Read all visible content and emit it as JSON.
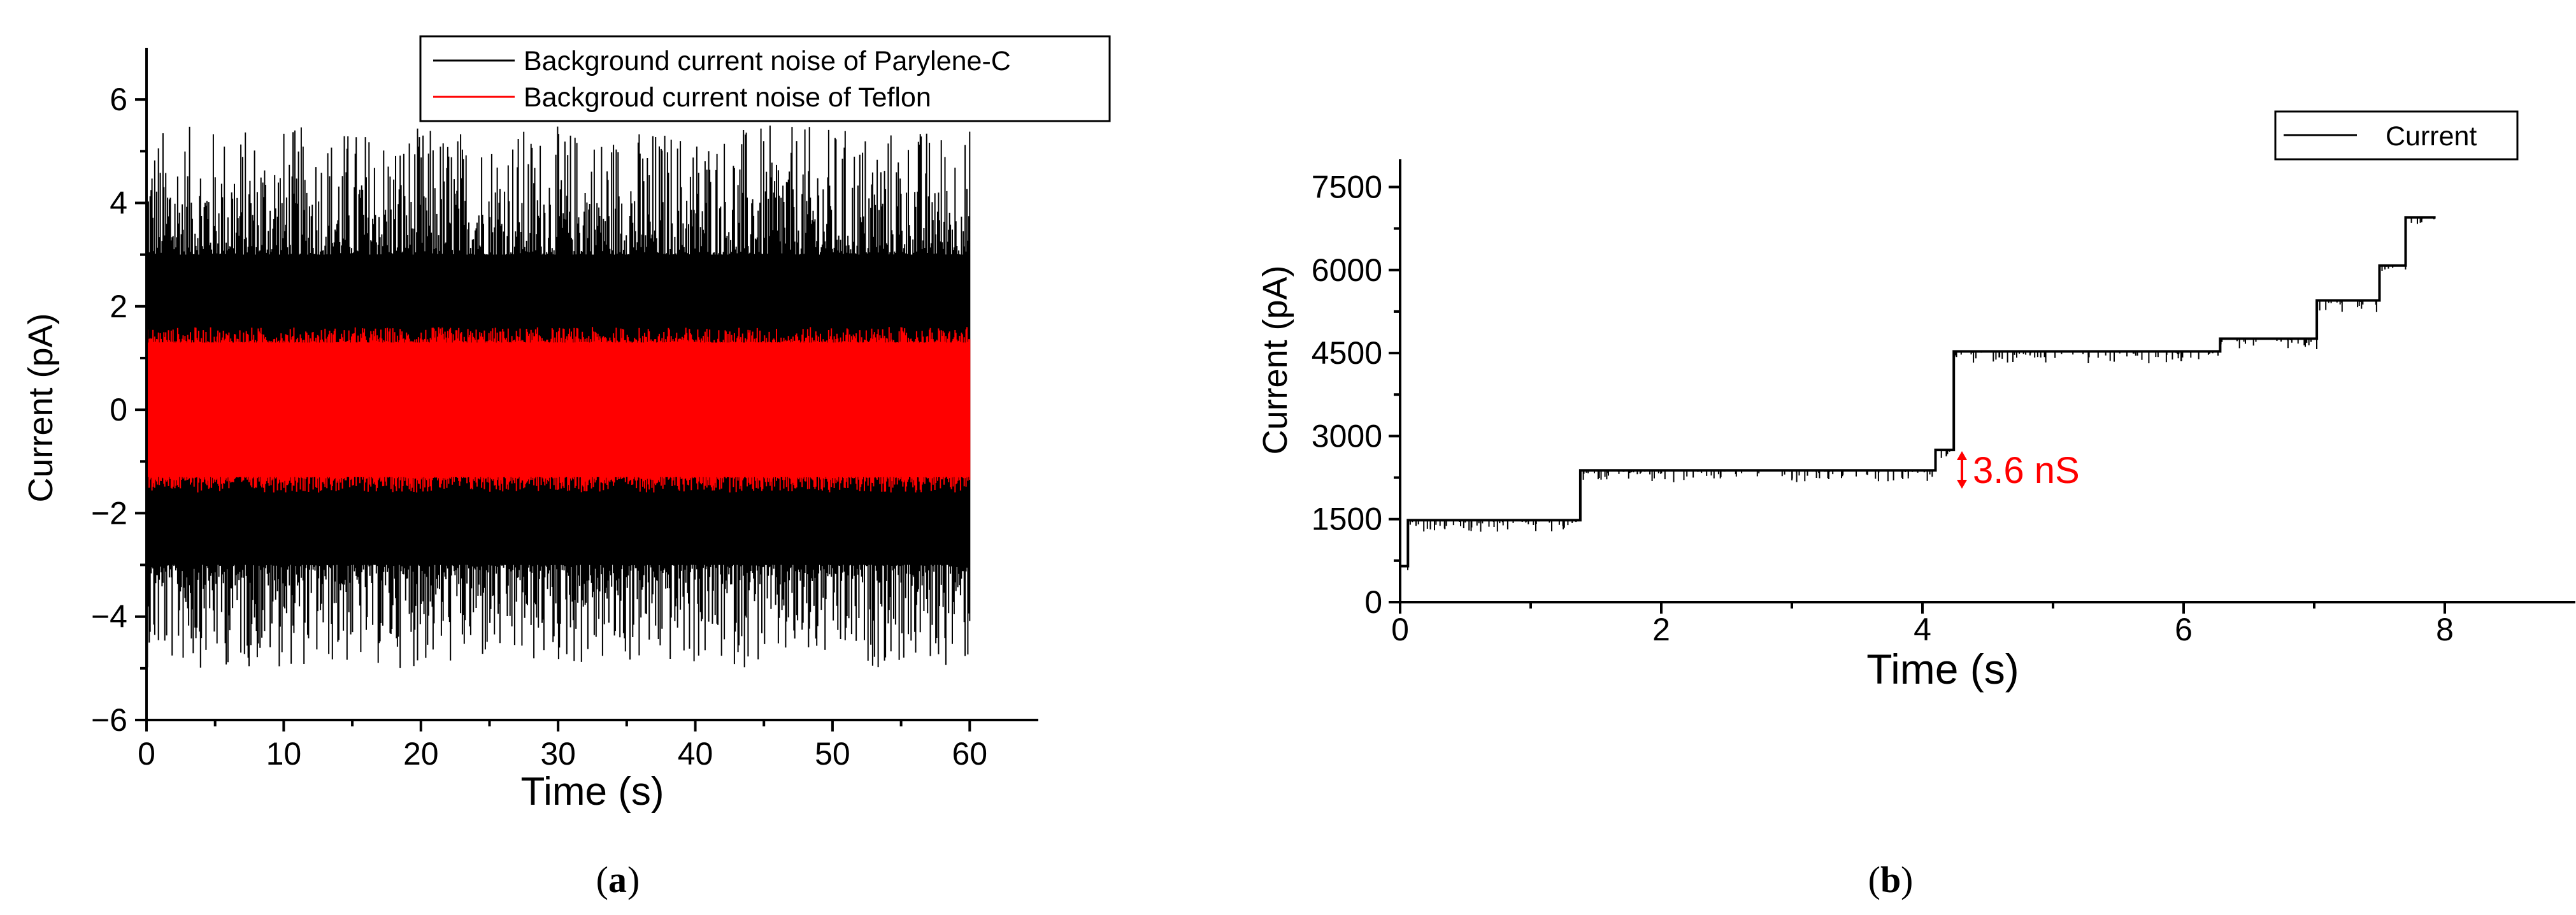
{
  "panels": {
    "a_label": "a",
    "b_label": "b"
  },
  "chart_data": [
    {
      "panel": "a",
      "type": "line",
      "xlabel": "Time (s)",
      "ylabel": "Current (pA)",
      "xlim": [
        0,
        65
      ],
      "ylim": [
        -6,
        7
      ],
      "xticks": [
        0,
        10,
        20,
        30,
        40,
        50,
        60
      ],
      "yticks": [
        -6,
        -4,
        -2,
        0,
        2,
        4,
        6
      ],
      "legend": {
        "placement": "top-right"
      },
      "series": [
        {
          "name": "Background current noise of Parylene-C",
          "color": "#000000",
          "style": "noise",
          "x_range": [
            0,
            60
          ],
          "dense_band": [
            -3.0,
            3.0
          ],
          "typical_peaks": [
            -5.0,
            5.5
          ]
        },
        {
          "name": "Backgroud current noise of Teflon",
          "color": "#ff0000",
          "style": "noise",
          "x_range": [
            0,
            60
          ],
          "dense_band": [
            -1.3,
            1.3
          ],
          "typical_peaks": [
            -1.6,
            1.6
          ]
        }
      ]
    },
    {
      "panel": "b",
      "type": "line",
      "xlabel": "Time (s)",
      "ylabel": "Current (pA)",
      "xlim": [
        0,
        9
      ],
      "ylim": [
        0,
        8000
      ],
      "xticks": [
        0,
        2,
        4,
        6,
        8
      ],
      "yticks": [
        0,
        1500,
        3000,
        4500,
        6000,
        7500
      ],
      "legend": {
        "placement": "top-right"
      },
      "annotation": {
        "text": "3.6 nS",
        "color": "#ff0000",
        "x": 4.05,
        "y": 2400
      },
      "series": [
        {
          "name": "Current",
          "color": "#000000",
          "style": "steps",
          "points": [
            [
              0.0,
              650
            ],
            [
              0.06,
              650
            ],
            [
              0.06,
              1480
            ],
            [
              1.38,
              1480
            ],
            [
              1.38,
              2380
            ],
            [
              4.1,
              2380
            ],
            [
              4.1,
              2750
            ],
            [
              4.24,
              2750
            ],
            [
              4.24,
              4530
            ],
            [
              6.28,
              4530
            ],
            [
              6.28,
              4760
            ],
            [
              7.02,
              4760
            ],
            [
              7.02,
              5450
            ],
            [
              7.5,
              5450
            ],
            [
              7.5,
              6080
            ],
            [
              7.7,
              6080
            ],
            [
              7.7,
              6950
            ],
            [
              7.93,
              6950
            ]
          ]
        }
      ]
    }
  ]
}
